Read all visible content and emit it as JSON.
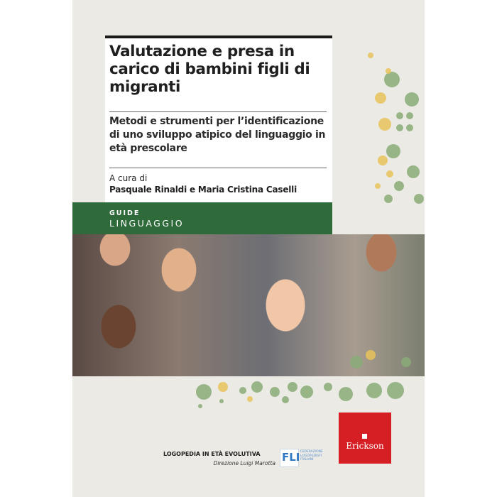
{
  "cover": {
    "title": "Valutazione e presa in carico di bambini figli di migranti",
    "subtitle": "Metodi e strumenti per l’identificazione di uno sviluppo atipico del linguaggio in età prescolare",
    "edited_by_label": "A cura di",
    "authors": "Pasquale Rinaldi e Maria Cristina Caselli",
    "series_type": "GUIDE",
    "series_name": "LINGUAGGIO",
    "collection": "LOGOPEDIA IN ETÀ EVOLUTIVA",
    "collection_director": "Direzione Luigi Marotta",
    "partner_logo": "FLI",
    "partner_name": "FEDERAZIONE LOGOPEDISTI ITALIANI",
    "publisher": "Erickson"
  },
  "colors": {
    "background": "#ebeae4",
    "band": "#2f6a3b",
    "publisher_red": "#d51f25",
    "dot_green": "#8aab78",
    "dot_yellow": "#e8c35a"
  }
}
